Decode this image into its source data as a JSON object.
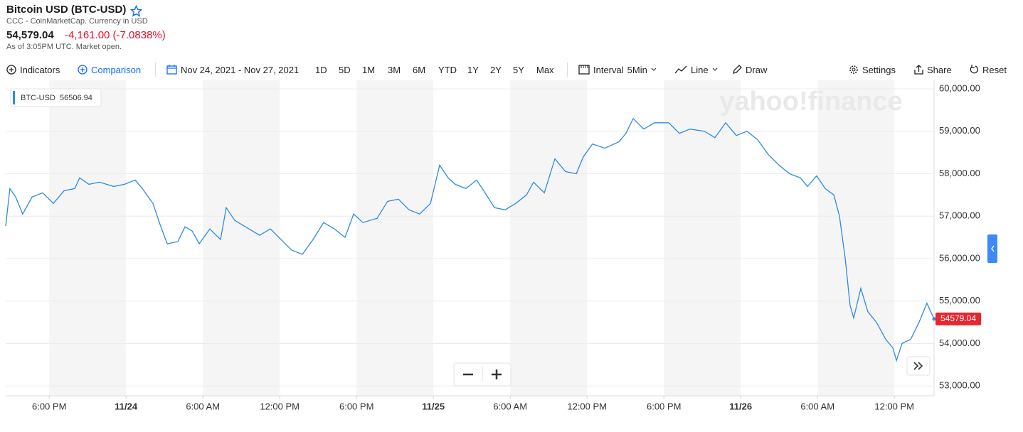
{
  "header": {
    "title": "Bitcoin USD (BTC-USD)",
    "subtitle": "CCC - CoinMarketCap. Currency in USD",
    "price": "54,579.04",
    "change": "-4,161.00 (-7.0838%)",
    "status": "As of 3:05PM UTC. Market open."
  },
  "toolbar": {
    "indicators": "Indicators",
    "comparison": "Comparison",
    "date_range": "Nov 24, 2021 - Nov 27, 2021",
    "periods": [
      "1D",
      "5D",
      "1M",
      "3M",
      "6M",
      "YTD",
      "1Y",
      "2Y",
      "5Y",
      "Max"
    ],
    "interval_label": "Interval",
    "interval": "5Min",
    "chart_type": "Line",
    "draw": "Draw",
    "settings": "Settings",
    "share": "Share",
    "reset": "Reset"
  },
  "watermark": "yahoo!finance",
  "chart_data": {
    "type": "line",
    "legend_value": 56506.94,
    "series": [
      {
        "name": "BTC-USD",
        "color": "#2d8ae6",
        "x": [
          14.6,
          14.93,
          15.38,
          15.93,
          16.66,
          17.49,
          18.32,
          19.16,
          19.99,
          20.38,
          21.1,
          21.93,
          23.04,
          23.88,
          24.71,
          25.27,
          26.1,
          26.66,
          27.21,
          28.04,
          28.6,
          29.16,
          29.71,
          30.54,
          31.38,
          31.82,
          32.49,
          33.6,
          34.43,
          35.27,
          36.1,
          36.93,
          37.77,
          38.6,
          39.43,
          40.27,
          41.1,
          41.77,
          42.49,
          43.6,
          44.43,
          45.27,
          46.1,
          46.93,
          47.77,
          48.49,
          49.16,
          49.71,
          50.54,
          51.38,
          51.93,
          52.77,
          53.6,
          54.43,
          55.27,
          55.82,
          56.66,
          57.49,
          58.32,
          59.16,
          59.71,
          60.43,
          61.38,
          62.49,
          63.04,
          63.6,
          64.43,
          65.27,
          66.38,
          67.21,
          68.04,
          69.16,
          69.99,
          70.82,
          71.66,
          72.49,
          73.32,
          74.16,
          74.99,
          75.82,
          76.66,
          77.21,
          77.93,
          78.6,
          79.27,
          79.71,
          80.16,
          80.54,
          80.82,
          81.38,
          81.93,
          82.6,
          83.32,
          83.88,
          84.16,
          84.6,
          85.27,
          85.93,
          86.54,
          87.1
        ],
        "values": [
          56770,
          57650,
          57450,
          57050,
          57450,
          57550,
          57300,
          57600,
          57650,
          57900,
          57750,
          57800,
          57700,
          57750,
          57850,
          57650,
          57300,
          56800,
          56350,
          56400,
          56750,
          56650,
          56350,
          56700,
          56450,
          57200,
          56900,
          56700,
          56550,
          56700,
          56450,
          56200,
          56100,
          56450,
          56850,
          56700,
          56500,
          57050,
          56850,
          56950,
          57350,
          57400,
          57150,
          57050,
          57300,
          58200,
          57900,
          57750,
          57650,
          57850,
          57600,
          57200,
          57150,
          57300,
          57500,
          57800,
          57550,
          58350,
          58050,
          58000,
          58400,
          58700,
          58600,
          58750,
          58950,
          59300,
          59050,
          59200,
          59200,
          58950,
          59050,
          59000,
          58850,
          59200,
          58900,
          59000,
          58800,
          58450,
          58200,
          58000,
          57900,
          57700,
          57950,
          57650,
          57500,
          57000,
          56000,
          54900,
          54600,
          55300,
          54750,
          54500,
          54100,
          53900,
          53600,
          54000,
          54100,
          54500,
          54950,
          54579.04
        ]
      }
    ],
    "xlim": [
      14.6,
      87.1
    ],
    "xticks": [
      {
        "value": 18,
        "label": "6:00 PM"
      },
      {
        "value": 24,
        "label": "11/24"
      },
      {
        "value": 30,
        "label": "6:00 AM"
      },
      {
        "value": 36,
        "label": "12:00 PM"
      },
      {
        "value": 42,
        "label": "6:00 PM"
      },
      {
        "value": 48,
        "label": "11/25"
      },
      {
        "value": 54,
        "label": "6:00 AM"
      },
      {
        "value": 60,
        "label": "12:00 PM"
      },
      {
        "value": 66,
        "label": "6:00 PM"
      },
      {
        "value": 72,
        "label": "11/26"
      },
      {
        "value": 78,
        "label": "6:00 AM"
      },
      {
        "value": 84,
        "label": "12:00 PM"
      }
    ],
    "ylim": [
      52770,
      60200
    ],
    "yticks": [
      {
        "value": 53000,
        "label": "53,000.00"
      },
      {
        "value": 54000,
        "label": "54,000.00"
      },
      {
        "value": 55000,
        "label": "55,000.00"
      },
      {
        "value": 56000,
        "label": "56,000.00"
      },
      {
        "value": 57000,
        "label": "57,000.00"
      },
      {
        "value": 58000,
        "label": "58,000.00"
      },
      {
        "value": 59000,
        "label": "59,000.00"
      },
      {
        "value": 60000,
        "label": "60,000.00"
      }
    ],
    "grid": true
  }
}
